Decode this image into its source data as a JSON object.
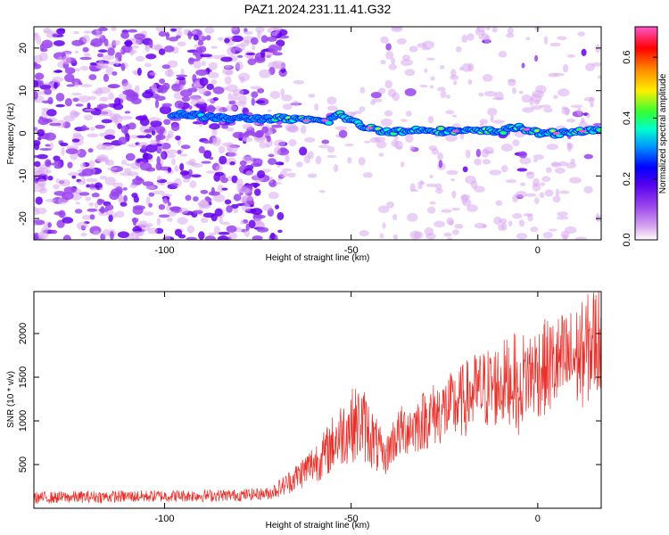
{
  "title": "PAZ1.2024.231.11.41.G32",
  "colors": {
    "snr_line": "#e8302a",
    "colormap": [
      "#ffffff",
      "#d9a8f0",
      "#9a44ee",
      "#6600ee",
      "#0000ff",
      "#0099ff",
      "#00ffcc",
      "#33ff33",
      "#ffee00",
      "#ff8800",
      "#ff0000",
      "#ff55cc"
    ]
  },
  "chart_data": [
    {
      "type": "heatmap",
      "xlabel": "Height of straight line (km)",
      "ylabel": "Frequency (Hz)",
      "xlim": [
        -135,
        17
      ],
      "ylim": [
        -25,
        25
      ],
      "xticks": [
        -100,
        -50,
        0
      ],
      "xtick_labels": [
        "-100",
        "-50",
        "0"
      ],
      "yticks": [
        -20,
        -10,
        0,
        10,
        20
      ],
      "ytick_labels": [
        "-20",
        "-10",
        "0",
        "10",
        "20"
      ],
      "grid": false,
      "colorbar": {
        "label": "Normalized spectral amplitude",
        "range": [
          0.0,
          0.7
        ],
        "ticks": [
          0.0,
          0.2,
          0.4,
          0.6
        ],
        "tick_labels": [
          "0.0",
          "0.2",
          "0.4",
          "0.6"
        ]
      },
      "ridge": {
        "description_points_x": [
          -95,
          -85,
          -75,
          -70,
          -62,
          -56,
          -53,
          -48,
          -44,
          -40,
          -35,
          -30,
          -25,
          -20,
          -15,
          -10,
          -5,
          0,
          5,
          10,
          15
        ],
        "description_points_y": [
          4.5,
          3.5,
          3.5,
          3.5,
          3,
          3,
          4.5,
          2,
          1,
          0.5,
          0.5,
          1,
          0.5,
          0.5,
          0.5,
          0.5,
          1.5,
          0,
          0,
          0.5,
          0.5
        ]
      }
    },
    {
      "type": "line",
      "xlabel": "Height of straight line (km)",
      "ylabel": "SNR (10 * v/v)",
      "xlim": [
        -135,
        17
      ],
      "ylim": [
        0,
        2480
      ],
      "xticks": [
        -100,
        -50,
        0
      ],
      "xtick_labels": [
        "-100",
        "-50",
        "0"
      ],
      "yticks": [
        500,
        1000,
        1500,
        2000
      ],
      "ytick_labels": [
        "500",
        "1000",
        "1500",
        "2000"
      ],
      "grid": false,
      "series": [
        {
          "x": [
            -135,
            -120,
            -100,
            -80,
            -72,
            -68,
            -64,
            -60,
            -57,
            -55,
            -52,
            -50,
            -47,
            -45,
            -43,
            -41,
            -39,
            -37,
            -35,
            -33,
            -31,
            -29,
            -27,
            -25,
            -22,
            -19,
            -17,
            -15,
            -12,
            -10,
            -8,
            -6,
            -5,
            -4,
            -2,
            0,
            3,
            6,
            9,
            12,
            14,
            16,
            17
          ],
          "y": [
            120,
            130,
            140,
            150,
            170,
            260,
            380,
            520,
            620,
            740,
            880,
            950,
            980,
            850,
            700,
            560,
            760,
            860,
            920,
            940,
            1000,
            1050,
            1090,
            1120,
            1180,
            1260,
            1320,
            1350,
            1390,
            1420,
            1460,
            1490,
            1160,
            1500,
            1540,
            1580,
            1620,
            1660,
            1700,
            1760,
            1850,
            1950,
            2000
          ]
        }
      ]
    }
  ]
}
